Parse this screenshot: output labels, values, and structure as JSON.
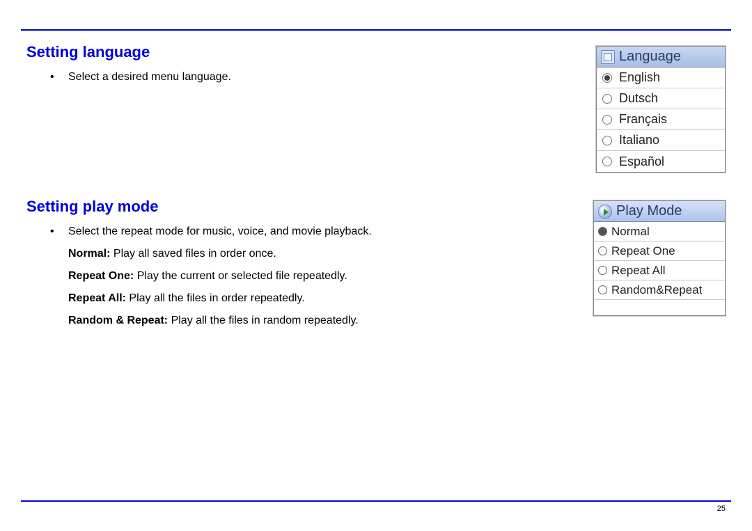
{
  "page": {
    "number": "25",
    "rule_color": "#0000d0"
  },
  "colors": {
    "heading": "#0000d8",
    "text": "#000000",
    "menu_header_bg_top": "#c9d7f1",
    "menu_header_bg_bottom": "#a7bfe8"
  },
  "language_section": {
    "heading": "Setting language",
    "bullet": "Select a desired menu language.",
    "menu": {
      "title": "Language",
      "items": [
        {
          "label": "English",
          "selected": true
        },
        {
          "label": "Dutsch",
          "selected": false
        },
        {
          "label": "Français",
          "selected": false
        },
        {
          "label": "Italiano",
          "selected": false
        },
        {
          "label": "Español",
          "selected": false
        }
      ]
    }
  },
  "playmode_section": {
    "heading": "Setting play mode",
    "bullet": "Select the repeat mode for music, voice, and movie playback.",
    "descriptions": [
      {
        "term": "Normal:",
        "text": " Play all saved files in order once."
      },
      {
        "term": "Repeat One:",
        "text": " Play the current or selected file repeatedly."
      },
      {
        "term": "Repeat All:",
        "text": " Play all the files in order repeatedly."
      },
      {
        "term": "Random & Repeat:",
        "text": " Play all the files in random repeatedly."
      }
    ],
    "menu": {
      "title": "Play Mode",
      "items": [
        {
          "label": "Normal",
          "selected": true
        },
        {
          "label": "Repeat One",
          "selected": false
        },
        {
          "label": "Repeat All",
          "selected": false
        },
        {
          "label": "Random&Repeat",
          "selected": false
        }
      ]
    }
  }
}
